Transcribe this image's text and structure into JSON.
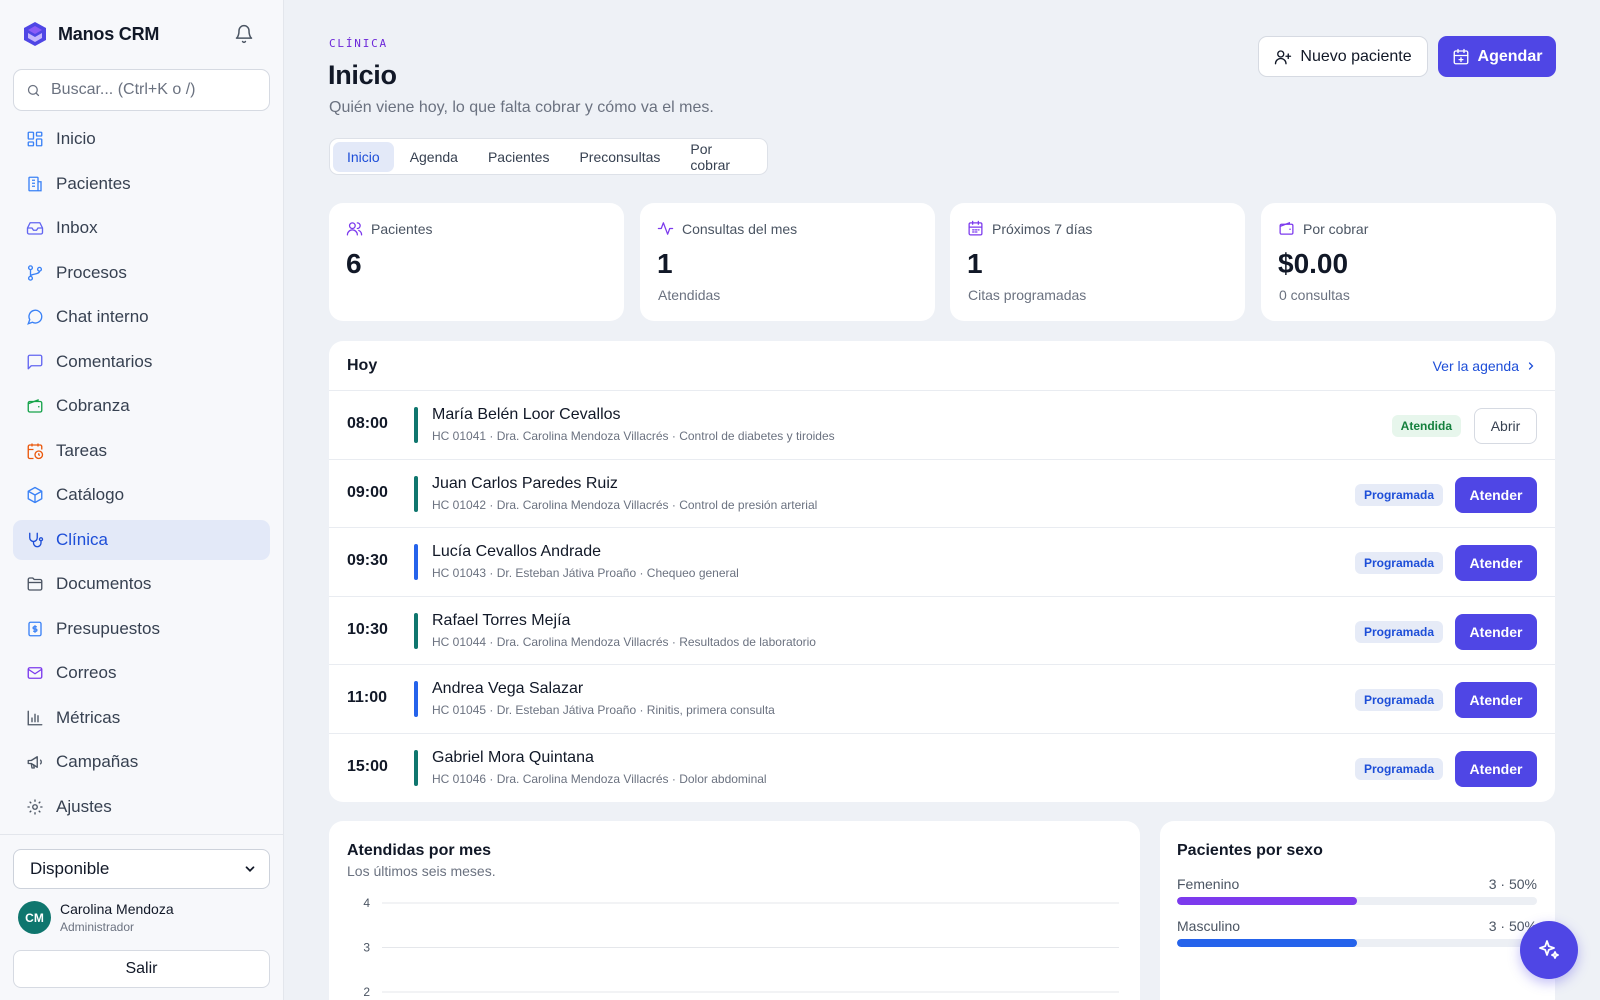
{
  "app": {
    "name": "Manos CRM"
  },
  "search": {
    "placeholder": "Buscar... (Ctrl+K o /)"
  },
  "sidebar": {
    "items": [
      {
        "label": "Inicio",
        "icon": "dashboard-icon"
      },
      {
        "label": "Pacientes",
        "icon": "building-icon"
      },
      {
        "label": "Inbox",
        "icon": "inbox-icon"
      },
      {
        "label": "Procesos",
        "icon": "git-branch-icon"
      },
      {
        "label": "Chat interno",
        "icon": "chat-icon"
      },
      {
        "label": "Comentarios",
        "icon": "comment-icon"
      },
      {
        "label": "Cobranza",
        "icon": "wallet-icon"
      },
      {
        "label": "Tareas",
        "icon": "calendar-clock-icon"
      },
      {
        "label": "Catálogo",
        "icon": "package-icon"
      },
      {
        "label": "Clínica",
        "icon": "stethoscope-icon",
        "active": true
      },
      {
        "label": "Documentos",
        "icon": "folder-icon"
      },
      {
        "label": "Presupuestos",
        "icon": "receipt-icon"
      },
      {
        "label": "Correos",
        "icon": "mail-icon"
      },
      {
        "label": "Métricas",
        "icon": "bar-chart-icon"
      },
      {
        "label": "Campañas",
        "icon": "megaphone-icon"
      },
      {
        "label": "Ajustes",
        "icon": "gear-icon"
      }
    ],
    "status": "Disponible",
    "user": {
      "initials": "CM",
      "name": "Carolina Mendoza",
      "role": "Administrador"
    },
    "logout": "Salir"
  },
  "header": {
    "eyebrow": "CLÍNICA",
    "title": "Inicio",
    "subtitle": "Quién viene hoy, lo que falta cobrar y cómo va el mes.",
    "new_patient": "Nuevo paciente",
    "schedule": "Agendar"
  },
  "tabs": [
    "Inicio",
    "Agenda",
    "Pacientes",
    "Preconsultas",
    "Por cobrar"
  ],
  "stats": [
    {
      "label": "Pacientes",
      "value": "6",
      "sub": ""
    },
    {
      "label": "Consultas del mes",
      "value": "1",
      "sub": "Atendidas"
    },
    {
      "label": "Próximos 7 días",
      "value": "1",
      "sub": "Citas programadas"
    },
    {
      "label": "Por cobrar",
      "value": "$0.00",
      "sub": "0 consultas"
    }
  ],
  "today": {
    "title": "Hoy",
    "link": "Ver la agenda",
    "rows": [
      {
        "time": "08:00",
        "name": "María Belén Loor Cevallos",
        "meta": "HC 01041 · Dra. Carolina Mendoza Villacrés · Control de diabetes y tiroides",
        "status": "Atendida",
        "action": "Abrir",
        "bar_color": "#0f766e"
      },
      {
        "time": "09:00",
        "name": "Juan Carlos Paredes Ruiz",
        "meta": "HC 01042 · Dra. Carolina Mendoza Villacrés · Control de presión arterial",
        "status": "Programada",
        "action": "Atender",
        "bar_color": "#0f766e"
      },
      {
        "time": "09:30",
        "name": "Lucía Cevallos Andrade",
        "meta": "HC 01043 · Dr. Esteban Játiva Proaño · Chequeo general",
        "status": "Programada",
        "action": "Atender",
        "bar_color": "#2563eb"
      },
      {
        "time": "10:30",
        "name": "Rafael Torres Mejía",
        "meta": "HC 01044 · Dra. Carolina Mendoza Villacrés · Resultados de laboratorio",
        "status": "Programada",
        "action": "Atender",
        "bar_color": "#0f766e"
      },
      {
        "time": "11:00",
        "name": "Andrea Vega Salazar",
        "meta": "HC 01045 · Dr. Esteban Játiva Proaño · Rinitis, primera consulta",
        "status": "Programada",
        "action": "Atender",
        "bar_color": "#2563eb"
      },
      {
        "time": "15:00",
        "name": "Gabriel Mora Quintana",
        "meta": "HC 01046 · Dra. Carolina Mendoza Villacrés · Dolor abdominal",
        "status": "Programada",
        "action": "Atender",
        "bar_color": "#0f766e"
      }
    ]
  },
  "chart_data": {
    "type": "bar",
    "title": "Atendidas por mes",
    "subtitle": "Los últimos seis meses.",
    "y_ticks": [
      "4",
      "3",
      "2"
    ],
    "ylim": [
      2,
      4
    ],
    "grid": true
  },
  "sex": {
    "title": "Pacientes por sexo",
    "rows": [
      {
        "label": "Femenino",
        "value": "3 · 50%",
        "fraction": 0.5,
        "color": "#7c3aed"
      },
      {
        "label": "Masculino",
        "value": "3 · 50%",
        "fraction": 0.5,
        "color": "#2563eb"
      }
    ]
  },
  "colors": {
    "accent": "#4f46e5",
    "nav_active": "#1d4ed8",
    "success": "#15803d"
  }
}
